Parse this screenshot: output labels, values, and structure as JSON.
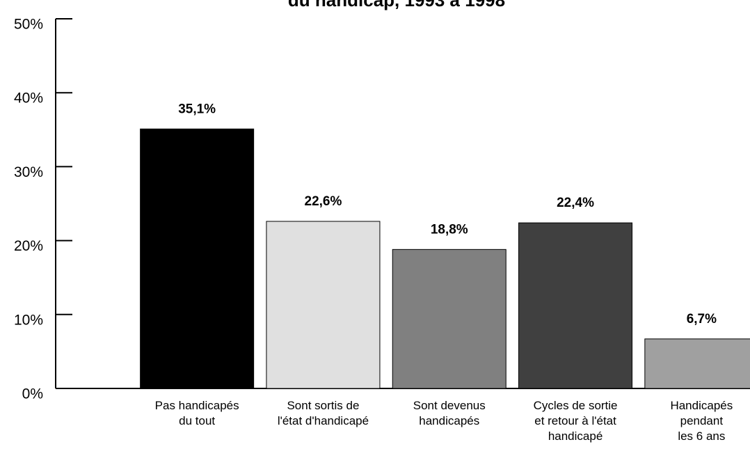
{
  "chart_data": {
    "type": "bar",
    "title": "du handicap, 1993 à 1998",
    "categories": [
      [
        "Pas handicapés",
        "du tout"
      ],
      [
        "Sont sortis de",
        "l'état d'handicapé"
      ],
      [
        "Sont devenus",
        "handicapés"
      ],
      [
        "Cycles de sortie",
        "et retour à l'état",
        "handicapé"
      ],
      [
        "Handicapés",
        "pendant",
        "les 6 ans"
      ]
    ],
    "values": [
      35.1,
      22.6,
      18.8,
      22.4,
      6.7
    ],
    "value_labels": [
      "35,1%",
      "22,6%",
      "18,8%",
      "22,4%",
      "6,7%"
    ],
    "colors": [
      "#000000",
      "#e0e0e0",
      "#808080",
      "#404040",
      "#a0a0a0"
    ],
    "ylim": [
      0,
      50
    ],
    "yticks": [
      {
        "value": 0,
        "label": "0%"
      },
      {
        "value": 10,
        "label": "10%"
      },
      {
        "value": 20,
        "label": "20%"
      },
      {
        "value": 30,
        "label": "30%"
      },
      {
        "value": 40,
        "label": "40%"
      },
      {
        "value": 50,
        "label": "50%"
      }
    ]
  }
}
